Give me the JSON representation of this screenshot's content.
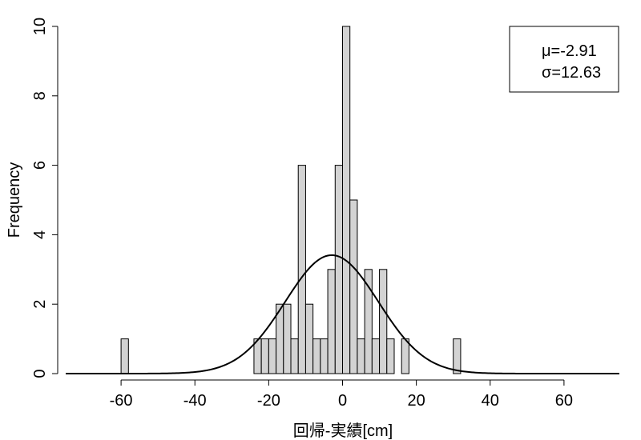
{
  "chart_data": {
    "type": "bar",
    "subtype": "histogram",
    "xlabel": "回帰-実績[cm]",
    "ylabel": "Frequency",
    "xlim": [
      -75,
      75
    ],
    "ylim": [
      0,
      10
    ],
    "x_ticks": [
      "-60",
      "-40",
      "-20",
      "0",
      "20",
      "40",
      "60"
    ],
    "y_ticks": [
      "0",
      "2",
      "4",
      "6",
      "8",
      "10"
    ],
    "bin_width": 2,
    "bins": [
      {
        "start": -60,
        "end": -58,
        "count": 1
      },
      {
        "start": -24,
        "end": -22,
        "count": 1
      },
      {
        "start": -22,
        "end": -20,
        "count": 1
      },
      {
        "start": -20,
        "end": -18,
        "count": 1
      },
      {
        "start": -18,
        "end": -16,
        "count": 2
      },
      {
        "start": -16,
        "end": -14,
        "count": 2
      },
      {
        "start": -14,
        "end": -12,
        "count": 1
      },
      {
        "start": -12,
        "end": -10,
        "count": 6
      },
      {
        "start": -10,
        "end": -8,
        "count": 2
      },
      {
        "start": -8,
        "end": -6,
        "count": 1
      },
      {
        "start": -6,
        "end": -4,
        "count": 1
      },
      {
        "start": -4,
        "end": -2,
        "count": 3
      },
      {
        "start": -2,
        "end": 0,
        "count": 6
      },
      {
        "start": 0,
        "end": 2,
        "count": 10
      },
      {
        "start": 2,
        "end": 4,
        "count": 5
      },
      {
        "start": 4,
        "end": 6,
        "count": 1
      },
      {
        "start": 6,
        "end": 8,
        "count": 3
      },
      {
        "start": 8,
        "end": 10,
        "count": 1
      },
      {
        "start": 10,
        "end": 12,
        "count": 3
      },
      {
        "start": 12,
        "end": 14,
        "count": 1
      },
      {
        "start": 16,
        "end": 18,
        "count": 1
      },
      {
        "start": 30,
        "end": 32,
        "count": 1
      }
    ],
    "overlay": {
      "type": "normal-density",
      "mu": -2.91,
      "sigma": 12.63
    },
    "legend": {
      "position": "top-right",
      "lines": [
        "μ=-2.91",
        "σ=12.63"
      ]
    },
    "grid": false,
    "colors": {
      "bar_fill": "#d3d3d3",
      "bar_stroke": "#000000",
      "curve": "#000000"
    }
  }
}
